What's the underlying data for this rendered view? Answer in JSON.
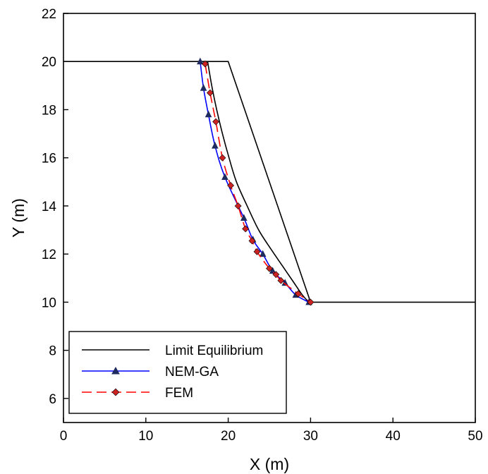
{
  "chart_data": {
    "type": "line",
    "title": "",
    "xlabel": "X (m)",
    "ylabel": "Y (m)",
    "xlim": [
      0,
      50
    ],
    "ylim": [
      5,
      22
    ],
    "xticks": [
      0,
      10,
      20,
      30,
      40,
      50
    ],
    "yticks": [
      6,
      8,
      10,
      12,
      14,
      16,
      18,
      20,
      22
    ],
    "grid": false,
    "legend_position": "bottom-left",
    "slope_profile": {
      "x": [
        0,
        20,
        30,
        50
      ],
      "y": [
        20,
        20,
        10,
        10
      ],
      "color": "#000000"
    },
    "series": [
      {
        "name": "Limit Equilibrium",
        "color": "#000000",
        "dash": "solid",
        "marker": "none",
        "x": [
          17.5,
          18.0,
          18.6,
          19.3,
          20.1,
          21.0,
          22.3,
          23.7,
          25.2,
          26.6,
          28.0,
          29.0,
          29.8
        ],
        "y": [
          20.0,
          19.0,
          18.0,
          17.0,
          16.0,
          15.0,
          14.0,
          13.0,
          12.2,
          11.5,
          10.8,
          10.3,
          10.0
        ]
      },
      {
        "name": "NEM-GA",
        "color": "#0000ff",
        "dash": "solid",
        "marker": "triangle",
        "marker_color": "#1f2a5e",
        "x": [
          16.6,
          17.0,
          17.6,
          18.4,
          19.6,
          21.9,
          23.0,
          24.2,
          25.4,
          26.9,
          28.2,
          29.8
        ],
        "y": [
          20.0,
          18.9,
          17.8,
          16.5,
          15.2,
          13.5,
          12.6,
          12.0,
          11.3,
          10.8,
          10.3,
          10.0
        ]
      },
      {
        "name": "FEM",
        "color": "#ff0000",
        "dash": "dashed",
        "marker": "diamond",
        "marker_color": "#cc2222",
        "x": [
          17.2,
          17.8,
          18.5,
          19.3,
          20.3,
          21.2,
          22.1,
          22.9,
          23.5,
          25.0,
          25.8,
          26.4,
          28.5,
          30.0
        ],
        "y": [
          19.9,
          18.7,
          17.5,
          16.0,
          14.85,
          14.0,
          13.05,
          12.55,
          12.1,
          11.4,
          11.15,
          10.9,
          10.35,
          10.0
        ]
      }
    ]
  }
}
